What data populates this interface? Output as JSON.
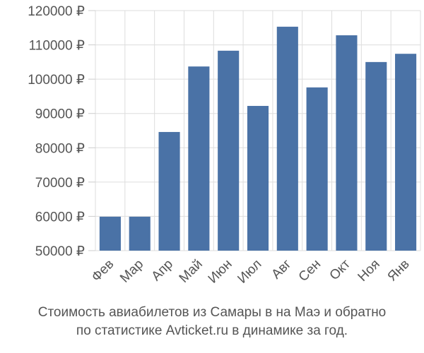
{
  "chart_data": {
    "type": "bar",
    "title": [
      "Стоимость авиабилетов из Самары в на Маэ и обратно",
      "по статистике Avticket.ru в динамике за год."
    ],
    "categories": [
      "Фев",
      "Мар",
      "Апр",
      "Май",
      "Июн",
      "Июл",
      "Авг",
      "Сен",
      "Окт",
      "Ноя",
      "Янв"
    ],
    "values": [
      59900,
      59900,
      84600,
      103700,
      108300,
      92200,
      115300,
      97600,
      112800,
      105000,
      107400
    ],
    "color": "#4a72a6",
    "ylim": [
      50000,
      120000
    ],
    "yticks": [
      {
        "value": 50000,
        "label": "50000 ₽"
      },
      {
        "value": 60000,
        "label": "60000 ₽"
      },
      {
        "value": 70000,
        "label": "70000 ₽"
      },
      {
        "value": 80000,
        "label": "80000 ₽"
      },
      {
        "value": 90000,
        "label": "90000 ₽"
      },
      {
        "value": 100000,
        "label": "100000 ₽"
      },
      {
        "value": 110000,
        "label": "110000 ₽"
      },
      {
        "value": 120000,
        "label": "120000 ₽"
      }
    ],
    "grid": true
  }
}
